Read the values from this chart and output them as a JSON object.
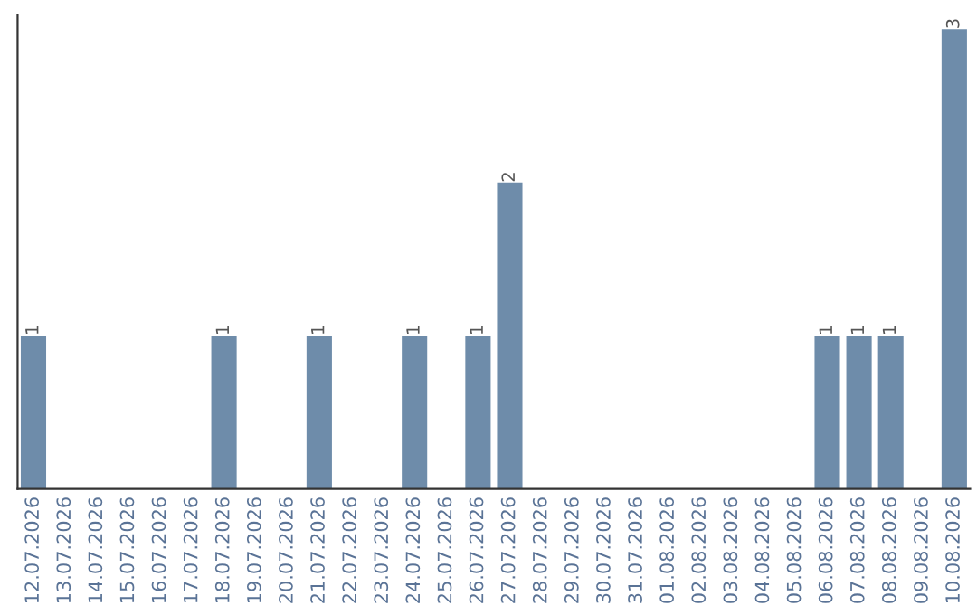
{
  "chart_data": {
    "type": "bar",
    "categories": [
      "12.07.2026",
      "13.07.2026",
      "14.07.2026",
      "15.07.2026",
      "16.07.2026",
      "17.07.2026",
      "18.07.2026",
      "19.07.2026",
      "20.07.2026",
      "21.07.2026",
      "22.07.2026",
      "23.07.2026",
      "24.07.2026",
      "25.07.2026",
      "26.07.2026",
      "27.07.2026",
      "28.07.2026",
      "29.07.2026",
      "30.07.2026",
      "31.07.2026",
      "01.08.2026",
      "02.08.2026",
      "03.08.2026",
      "04.08.2026",
      "05.08.2026",
      "06.08.2026",
      "07.08.2026",
      "08.08.2026",
      "09.08.2026",
      "10.08.2026"
    ],
    "values": [
      1,
      0,
      0,
      0,
      0,
      0,
      1,
      0,
      0,
      1,
      0,
      0,
      1,
      0,
      1,
      2,
      0,
      0,
      0,
      0,
      0,
      0,
      0,
      0,
      0,
      1,
      1,
      1,
      0,
      3
    ],
    "value_labels": [
      "1",
      null,
      null,
      null,
      null,
      null,
      "1",
      null,
      null,
      "1",
      null,
      null,
      "1",
      null,
      "1",
      "2",
      null,
      null,
      null,
      null,
      null,
      null,
      null,
      null,
      null,
      "1",
      "1",
      "1",
      null,
      "3"
    ],
    "color": "#6e8caa",
    "tick_labels": "x"
  }
}
